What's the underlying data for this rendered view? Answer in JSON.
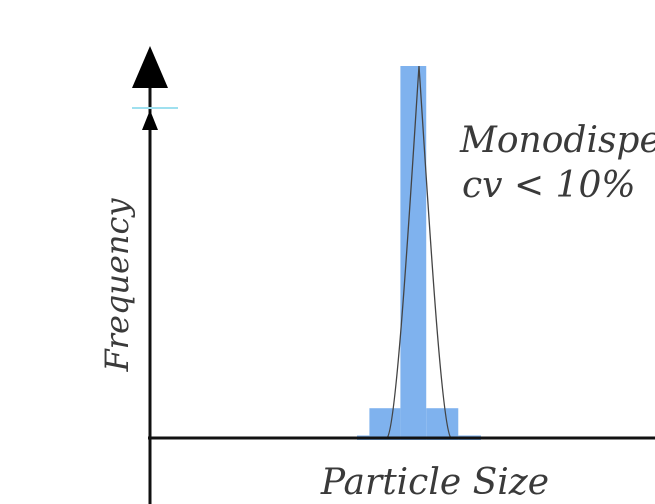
{
  "chart_data": {
    "type": "bar",
    "xlabel": "Particle Size",
    "ylabel": "Frequency",
    "annotation": {
      "line1": "Monodisper",
      "line2": "cv < 10%"
    },
    "bars": [
      {
        "x0": 0.0,
        "x1": 0.6,
        "height": 0.012
      },
      {
        "x0": 0.6,
        "x1": 2.1,
        "height": 0.085
      },
      {
        "x0": 2.1,
        "x1": 3.35,
        "height": 1.0
      },
      {
        "x0": 3.35,
        "x1": 4.9,
        "height": 0.085
      },
      {
        "x0": 4.9,
        "x1": 6.0,
        "height": 0.012
      }
    ],
    "curve_peak_x": 3.0,
    "xlim": [
      0,
      6
    ],
    "ylim": [
      0,
      1
    ],
    "colors": {
      "bar_fill": "#7fb2ee",
      "axis": "#111111",
      "curve": "#444444",
      "tick_accent": "#9fe0ef"
    }
  }
}
